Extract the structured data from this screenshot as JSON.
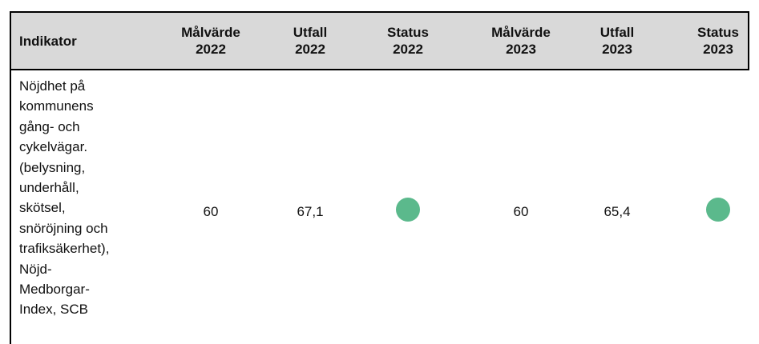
{
  "table": {
    "header": [
      [
        "Indikator"
      ],
      [
        "Målvärde",
        "2022"
      ],
      [
        "Utfall",
        "2022"
      ],
      [
        "Status",
        "2022"
      ],
      [
        "Målvärde",
        "2023"
      ],
      [
        "Utfall",
        "2023"
      ],
      [
        "Status",
        "2023"
      ]
    ],
    "rows": [
      {
        "indicator": [
          "Nöjdhet på",
          "kommunens",
          "gång- och",
          "cykelvägar.",
          "(belysning,",
          "underhåll,",
          "skötsel,",
          "snöröjning och",
          "trafiksäkerhet),",
          "Nöjd-",
          "Medborgar-",
          "Index, SCB"
        ],
        "cells": [
          "60",
          "67,1",
          {
            "status_color": "#5bb98c"
          },
          "60",
          "65,4",
          {
            "status_color": "#5bb98c"
          }
        ]
      }
    ]
  }
}
